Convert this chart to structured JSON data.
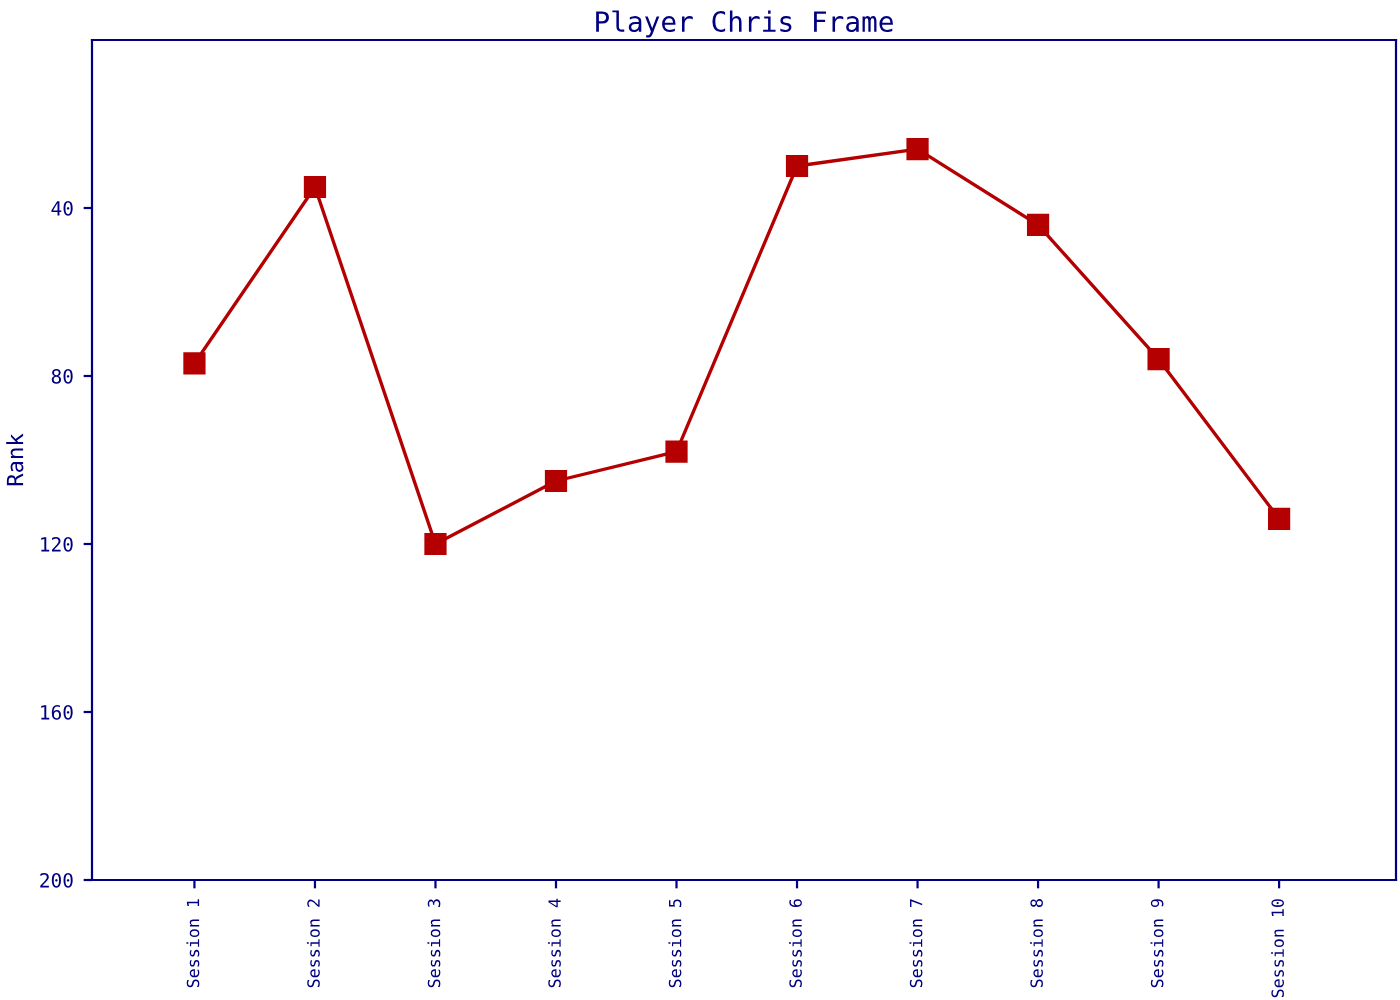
{
  "chart_data": {
    "type": "line",
    "title": "Player Chris Frame",
    "ylabel": "Rank",
    "categories": [
      "Session 1",
      "Session 2",
      "Session 3",
      "Session 4",
      "Session 5",
      "Session 6",
      "Session 7",
      "Session 8",
      "Session 9",
      "Session 10"
    ],
    "series": [
      {
        "color": "#b40000",
        "values": [
          77,
          35,
          120,
          105,
          98,
          30,
          26,
          44,
          76,
          114
        ]
      }
    ],
    "ylim": [
      200,
      0
    ],
    "yticks": [
      40,
      80,
      120,
      160,
      200
    ],
    "marker": "square",
    "line_style": "solid",
    "grid": false,
    "legend": false
  }
}
